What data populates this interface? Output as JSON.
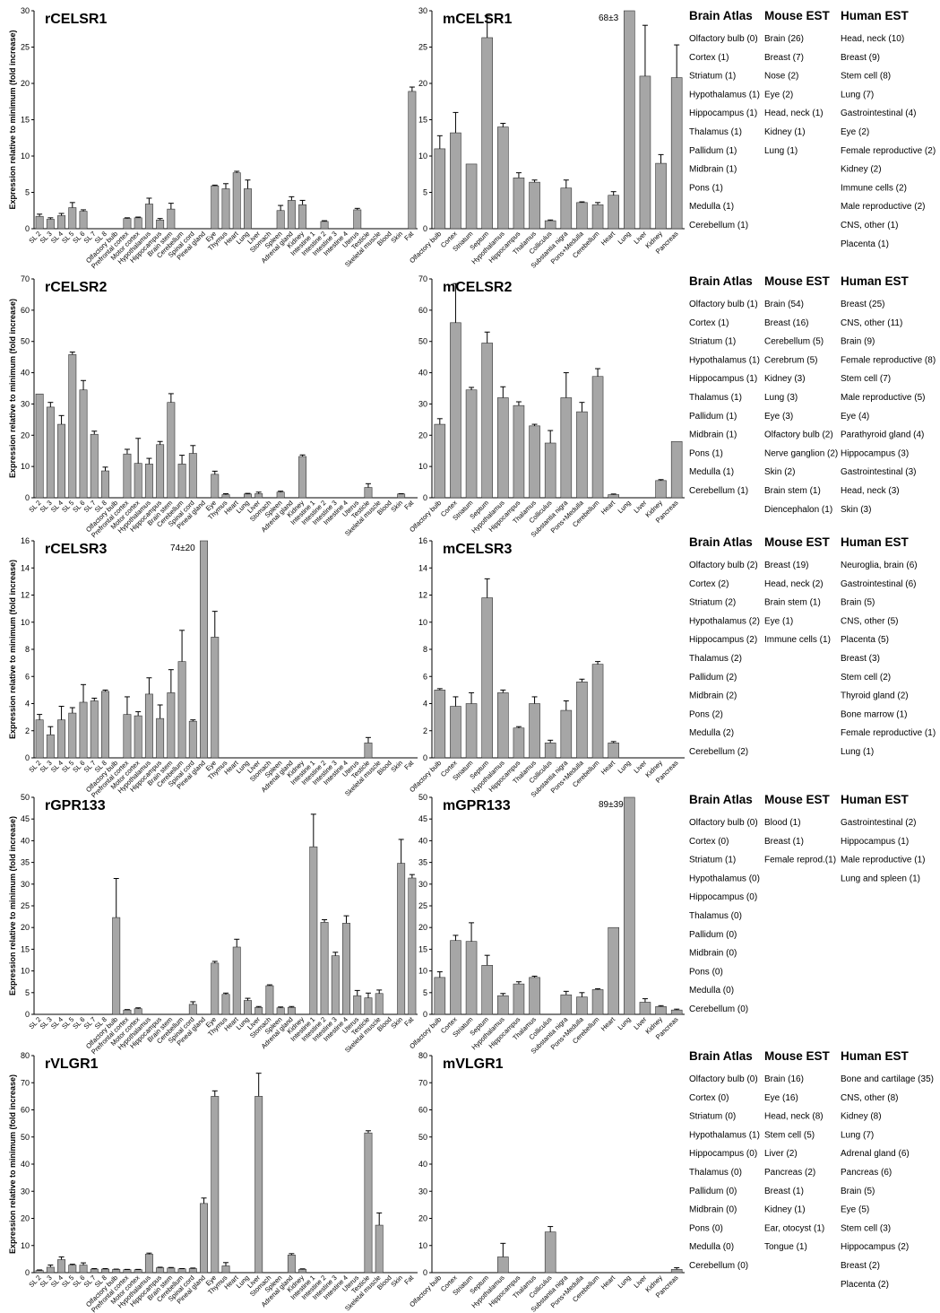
{
  "figure": {
    "ylabel": "Expression relative to minimum (fold increase)",
    "columns": {
      "brain": "Brain Atlas",
      "mouse": "Mouse EST",
      "human": "Human EST"
    },
    "colors": {
      "bar": "#a6a6a6",
      "bar_stroke": "#333333",
      "axis": "#000000"
    }
  },
  "chart_data": [
    {
      "type": "bar",
      "title": "rCELSR1",
      "annotation": "",
      "ylim": [
        0,
        30
      ],
      "ytick_step": 5,
      "categories": [
        "SL 2",
        "SL 3",
        "SL 4",
        "SL 5",
        "SL 6",
        "SL 7",
        "SL 8",
        "Olfactory bulb",
        "Prefrontal cortex",
        "Motor cortex",
        "Hypothalamus",
        "Hippocampus",
        "Brain stem",
        "Cerebellum",
        "Spinal cord",
        "Pineal gland",
        "Eye",
        "Thymus",
        "Heart",
        "Lung",
        "Liver",
        "Stomach",
        "Spleen",
        "Adrenal gland",
        "Kidney",
        "Intestine 1",
        "Intestine 2",
        "Intestine 3",
        "Intestine 4",
        "Uterus",
        "Testicle",
        "Skeletal muscle",
        "Blood",
        "Skin",
        "Fat"
      ],
      "values": [
        1.7,
        1.3,
        1.8,
        2.9,
        2.4,
        0,
        0,
        0,
        1.4,
        1.5,
        3.4,
        1.2,
        2.7,
        0,
        0,
        0,
        5.9,
        5.5,
        7.7,
        5.5,
        0,
        0,
        2.5,
        3.9,
        3.3,
        0,
        1.0,
        0,
        0,
        2.6,
        0,
        0,
        0,
        0,
        18.9
      ],
      "errors": [
        0.3,
        0.2,
        0.3,
        0.7,
        0.2,
        0,
        0,
        0,
        0.1,
        0.1,
        0.8,
        0.2,
        0.8,
        0,
        0,
        0,
        0.1,
        0.7,
        0.2,
        1.2,
        0,
        0,
        0.7,
        0.5,
        0.6,
        0,
        0.1,
        0,
        0,
        0.2,
        0,
        0,
        0,
        0,
        0.6
      ]
    },
    {
      "type": "bar",
      "title": "mCELSR1",
      "annotation": "68±3",
      "ylim": [
        0,
        30
      ],
      "ytick_step": 5,
      "categories": [
        "Olfactory bulb",
        "Cortex",
        "Striatum",
        "Septum",
        "Hypothalamus",
        "Hippocampus",
        "Thalamus",
        "Colliculus",
        "Substantia nigra",
        "Pons+Medulla",
        "Cerebellum",
        "Heart",
        "Lung",
        "Liver",
        "Kidney",
        "Pancreas"
      ],
      "values": [
        11.0,
        13.2,
        8.9,
        26.3,
        14.0,
        7.0,
        6.4,
        1.1,
        5.6,
        3.6,
        3.3,
        4.6,
        30,
        21.0,
        9.0,
        20.8
      ],
      "errors": [
        1.8,
        2.8,
        0,
        3.0,
        0.5,
        0.7,
        0.3,
        0.1,
        1.1,
        0.1,
        0.3,
        0.5,
        0,
        7.0,
        1.2,
        4.5
      ]
    },
    {
      "type": "bar",
      "title": "rCELSR2",
      "annotation": "",
      "ylim": [
        0,
        70
      ],
      "ytick_step": 10,
      "categories": [
        "SL 2",
        "SL 3",
        "SL 4",
        "SL 5",
        "SL 6",
        "SL 7",
        "SL 8",
        "Olfactory bulb",
        "Prefrontal cortex",
        "Motor cortex",
        "Hypothalamus",
        "Hippocampus",
        "Brain stem",
        "Cerebellum",
        "Spinal cord",
        "Pineal gland",
        "Eye",
        "Thymus",
        "Heart",
        "Lung",
        "Liver",
        "Stomach",
        "Spleen",
        "Adrenal gland",
        "Kidney",
        "Intestine 1",
        "Intestine 2",
        "Intestine 3",
        "Intestine 4",
        "Uterus",
        "Testicle",
        "Skeletal muscle",
        "Blood",
        "Skin",
        "Fat"
      ],
      "values": [
        33.2,
        29.0,
        23.5,
        45.8,
        34.5,
        20.3,
        8.6,
        0,
        14.0,
        11.0,
        10.8,
        17.0,
        30.5,
        10.8,
        14.2,
        0,
        7.5,
        1.0,
        0,
        1.2,
        1.3,
        0,
        1.8,
        0,
        13.2,
        0,
        0,
        0,
        0,
        0,
        3.3,
        0,
        0,
        1.2,
        0
      ],
      "errors": [
        0,
        1.5,
        2.8,
        0.8,
        3.0,
        1.0,
        1.2,
        0,
        1.5,
        8.0,
        1.8,
        1.0,
        2.8,
        2.8,
        2.5,
        0,
        1.0,
        0.3,
        0,
        0.2,
        0.5,
        0,
        0.3,
        0,
        0.5,
        0,
        0,
        0,
        0,
        0,
        1.2,
        0,
        0,
        0.1,
        0
      ]
    },
    {
      "type": "bar",
      "title": "mCELSR2",
      "annotation": "",
      "ylim": [
        0,
        70
      ],
      "ytick_step": 10,
      "categories": [
        "Olfactory bulb",
        "Cortex",
        "Striatum",
        "Septum",
        "Hypothalamus",
        "Hippocampus",
        "Thalamus",
        "Colliculus",
        "Substantia nigra",
        "Pons+Medulla",
        "Cerebellum",
        "Heart",
        "Lung",
        "Liver",
        "Kidney",
        "Pancreas"
      ],
      "values": [
        23.5,
        56.0,
        34.5,
        49.5,
        32.0,
        29.5,
        23.0,
        17.5,
        32.0,
        27.5,
        38.8,
        1.0,
        0,
        0,
        5.5,
        18.0
      ],
      "errors": [
        1.8,
        12.5,
        0.8,
        3.5,
        3.5,
        1.2,
        0.5,
        4.0,
        8.0,
        3.0,
        2.5,
        0.2,
        0,
        0,
        0.3,
        0
      ]
    },
    {
      "type": "bar",
      "title": "rCELSR3",
      "annotation": "74±20",
      "ylim": [
        0,
        16
      ],
      "ytick_step": 2,
      "categories": [
        "SL 2",
        "SL 3",
        "SL 4",
        "SL 5",
        "SL 6",
        "SL 7",
        "SL 8",
        "Olfactory bulb",
        "Prefrontal cortex",
        "Motor cortex",
        "Hypothalamus",
        "Hippocampus",
        "Brain stem",
        "Cerebellum",
        "Spinal cord",
        "Pineal gland",
        "Eye",
        "Thymus",
        "Heart",
        "Lung",
        "Liver",
        "Stomach",
        "Spleen",
        "Adrenal gland",
        "Kidney",
        "Intestine 1",
        "Intestine 2",
        "Intestine 3",
        "Intestine 4",
        "Uterus",
        "Testicle",
        "Skeletal muscle",
        "Blood",
        "Skin",
        "Fat"
      ],
      "values": [
        2.8,
        1.7,
        2.8,
        3.3,
        4.1,
        4.2,
        4.9,
        0,
        3.2,
        3.1,
        4.7,
        2.9,
        4.8,
        7.1,
        2.7,
        16,
        8.9,
        0,
        0,
        0,
        0,
        0,
        0,
        0,
        0,
        0,
        0,
        0,
        0,
        0,
        1.1,
        0,
        0,
        0,
        0
      ],
      "errors": [
        0.4,
        0.6,
        1.0,
        0.4,
        1.3,
        0.2,
        0.1,
        0,
        1.3,
        0.3,
        1.2,
        1.0,
        1.7,
        2.3,
        0.1,
        0,
        1.9,
        0,
        0,
        0,
        0,
        0,
        0,
        0,
        0,
        0,
        0,
        0,
        0,
        0,
        0.4,
        0,
        0,
        0,
        0
      ]
    },
    {
      "type": "bar",
      "title": "mCELSR3",
      "annotation": "",
      "ylim": [
        0,
        16
      ],
      "ytick_step": 2,
      "categories": [
        "Olfactory bulb",
        "Cortex",
        "Striatum",
        "Septum",
        "Hypothalamus",
        "Hippocampus",
        "Thalamus",
        "Colliculus",
        "Substantia nigra",
        "Pons+Medulla",
        "Cerebellum",
        "Heart",
        "Lung",
        "Liver",
        "Kidney",
        "Pancreas"
      ],
      "values": [
        5.0,
        3.8,
        4.0,
        11.8,
        4.8,
        2.2,
        4.0,
        1.1,
        3.5,
        5.6,
        6.9,
        1.1,
        0,
        0,
        0,
        0
      ],
      "errors": [
        0.1,
        0.7,
        0.8,
        1.4,
        0.2,
        0.1,
        0.5,
        0.2,
        0.7,
        0.2,
        0.2,
        0.1,
        0,
        0,
        0,
        0
      ]
    },
    {
      "type": "bar",
      "title": "rGPR133",
      "annotation": "",
      "ylim": [
        0,
        50
      ],
      "ytick_step": 5,
      "categories": [
        "SL 2",
        "SL 3",
        "SL 4",
        "SL 5",
        "SL 6",
        "SL 7",
        "SL 8",
        "Olfactory bulb",
        "Prefrontal cortex",
        "Motor cortex",
        "Hypothalamus",
        "Hippocampus",
        "Brain stem",
        "Cerebellum",
        "Spinal cord",
        "Pineal gland",
        "Eye",
        "Thymus",
        "Heart",
        "Lung",
        "Liver",
        "Stomach",
        "Spleen",
        "Adrenal gland",
        "Kidney",
        "Intestine 1",
        "Intestine 2",
        "Intestine 3",
        "Intestine 4",
        "Uterus",
        "Testicle",
        "Skeletal muscle",
        "Blood",
        "Skin",
        "Fat"
      ],
      "values": [
        0,
        0,
        0,
        0,
        0,
        0,
        0,
        22.3,
        1.0,
        1.3,
        0,
        0,
        0,
        0,
        2.3,
        0,
        11.8,
        4.6,
        15.5,
        3.2,
        1.6,
        6.6,
        1.5,
        1.6,
        0,
        38.6,
        21.2,
        13.5,
        21.0,
        4.3,
        3.8,
        4.8,
        0,
        34.8,
        31.4
      ],
      "errors": [
        0,
        0,
        0,
        0,
        0,
        0,
        0,
        9.0,
        0.1,
        0.2,
        0,
        0,
        0,
        0,
        0.6,
        0,
        0.4,
        0.3,
        1.8,
        0.5,
        0.2,
        0.2,
        0.2,
        0.2,
        0,
        7.5,
        0.6,
        0.8,
        1.7,
        1.2,
        1.1,
        0.8,
        0,
        5.5,
        0.8
      ]
    },
    {
      "type": "bar",
      "title": "mGPR133",
      "annotation": "89±39",
      "ylim": [
        0,
        50
      ],
      "ytick_step": 5,
      "categories": [
        "Olfactory bulb",
        "Cortex",
        "Striatum",
        "Septum",
        "Hypothalamus",
        "Hippocampus",
        "Thalamus",
        "Colliculus",
        "Substantia nigra",
        "Pons+Medulla",
        "Cerebellum",
        "Heart",
        "Lung",
        "Liver",
        "Kidney",
        "Pancreas"
      ],
      "values": [
        8.5,
        17.0,
        16.8,
        11.3,
        4.3,
        7.0,
        8.5,
        0,
        4.5,
        4.0,
        5.7,
        20.0,
        50,
        2.8,
        1.8,
        1.0
      ],
      "errors": [
        1.3,
        1.2,
        4.3,
        2.3,
        0.5,
        0.5,
        0.3,
        0,
        0.8,
        1.0,
        0.2,
        0,
        0,
        0.8,
        0.2,
        0.2
      ]
    },
    {
      "type": "bar",
      "title": "rVLGR1",
      "annotation": "",
      "ylim": [
        0,
        80
      ],
      "ytick_step": 10,
      "categories": [
        "SL 2",
        "SL 3",
        "SL 4",
        "SL 5",
        "SL 6",
        "SL 7",
        "SL 8",
        "Olfactory bulb",
        "Prefrontal cortex",
        "Motor cortex",
        "Hypothalamus",
        "Hippocampus",
        "Brain stem",
        "Cerebellum",
        "Spinal cord",
        "Pineal gland",
        "Eye",
        "Thymus",
        "Heart",
        "Lung",
        "Liver",
        "Stomach",
        "Spleen",
        "Adrenal gland",
        "Kidney",
        "Intestine 1",
        "Intestine 2",
        "Intestine 3",
        "Intestine 4",
        "Uterus",
        "Testicle",
        "Skeletal muscle",
        "Blood",
        "Skin",
        "Fat"
      ],
      "values": [
        0.8,
        2.0,
        4.8,
        2.8,
        2.8,
        1.3,
        1.3,
        1.2,
        1.1,
        1.1,
        6.8,
        1.8,
        1.7,
        1.4,
        1.5,
        25.5,
        65.0,
        2.5,
        0,
        0,
        65.0,
        0,
        0,
        6.5,
        1.2,
        0,
        0,
        0,
        0,
        0,
        51.5,
        17.5,
        0,
        0,
        0
      ],
      "errors": [
        0.2,
        0.8,
        1.0,
        0.3,
        0.8,
        0.2,
        0.2,
        0.1,
        0.1,
        0.1,
        0.4,
        0.2,
        0.2,
        0.1,
        0.2,
        2.0,
        2.0,
        1.2,
        0,
        0,
        8.5,
        0,
        0,
        0.5,
        0.2,
        0,
        0,
        0,
        0,
        0,
        0.8,
        4.5,
        0,
        0,
        0
      ]
    },
    {
      "type": "bar",
      "title": "mVLGR1",
      "annotation": "",
      "ylim": [
        0,
        80
      ],
      "ytick_step": 10,
      "categories": [
        "Olfactory bulb",
        "Cortex",
        "Striatum",
        "Septum",
        "Hypothalamus",
        "Hippocampus",
        "Thalamus",
        "Colliculus",
        "Substantia nigra",
        "Pons+Medulla",
        "Cerebellum",
        "Heart",
        "Lung",
        "Liver",
        "Kidney",
        "Pancreas"
      ],
      "values": [
        0,
        0,
        0,
        0,
        5.8,
        0,
        0,
        15.0,
        0,
        0,
        0,
        0,
        0,
        0,
        0,
        1.2
      ],
      "errors": [
        0,
        0,
        0,
        0,
        5.0,
        0,
        0,
        2.0,
        0,
        0,
        0,
        0,
        0,
        0,
        0,
        0.6
      ]
    }
  ],
  "tables": [
    {
      "brain": [
        "Olfactory bulb (0)",
        "Cortex (1)",
        "Striatum (1)",
        "Hypothalamus (1)",
        "Hippocampus (1)",
        "Thalamus (1)",
        "Pallidum (1)",
        "Midbrain (1)",
        "Pons (1)",
        "Medulla (1)",
        "Cerebellum (1)"
      ],
      "mouse": [
        "Brain (26)",
        "Breast (7)",
        "Nose (2)",
        "Eye (2)",
        "Head, neck (1)",
        "Kidney (1)",
        "Lung (1)"
      ],
      "human": [
        "Head, neck (10)",
        "Breast (9)",
        "Stem cell (8)",
        "Lung (7)",
        "Gastrointestinal (4)",
        "Eye (2)",
        "Female reproductive (2)",
        "Kidney (2)",
        "Immune cells (2)",
        "Male reproductive (2)",
        "CNS, other (1)",
        "Placenta (1)"
      ]
    },
    {
      "brain": [
        "Olfactory bulb (1)",
        "Cortex (1)",
        "Striatum (1)",
        "Hypothalamus (1)",
        "Hippocampus (1)",
        "Thalamus (1)",
        "Pallidum (1)",
        "Midbrain (1)",
        "Pons (1)",
        "Medulla (1)",
        "Cerebellum (1)"
      ],
      "mouse": [
        "Brain (54)",
        "Breast (16)",
        "Cerebellum (5)",
        "Cerebrum (5)",
        "Kidney (3)",
        "Lung (3)",
        "Eye (3)",
        "Olfactory bulb (2)",
        "Nerve ganglion (2)",
        "Skin (2)",
        "Brain stem (1)",
        "Diencephalon (1)"
      ],
      "human": [
        "Breast (25)",
        "CNS, other (11)",
        "Brain (9)",
        "Female reproductive (8)",
        "Stem cell (7)",
        "Male reproductive (5)",
        "Eye (4)",
        "Parathyroid gland (4)",
        "Hippocampus (3)",
        "Gastrointestinal (3)",
        "Head, neck (3)",
        "Skin (3)"
      ]
    },
    {
      "brain": [
        "Olfactory bulb (2)",
        "Cortex (2)",
        "Striatum (2)",
        "Hypothalamus (2)",
        "Hippocampus (2)",
        "Thalamus (2)",
        "Pallidum (2)",
        "Midbrain (2)",
        "Pons (2)",
        "Medulla (2)",
        "Cerebellum (2)"
      ],
      "mouse": [
        "Breast (19)",
        "Head, neck (2)",
        "Brain stem (1)",
        "Eye (1)",
        "Immune cells (1)"
      ],
      "human": [
        "Neuroglia, brain (6)",
        "Gastrointestinal (6)",
        "Brain (5)",
        "CNS, other (5)",
        "Placenta (5)",
        "Breast (3)",
        "Stem cell (2)",
        "Thyroid gland (2)",
        "Bone marrow (1)",
        "Female reproductive (1)",
        "Lung (1)"
      ]
    },
    {
      "brain": [
        "Olfactory bulb (0)",
        "Cortex (0)",
        "Striatum (1)",
        "Hypothalamus (0)",
        "Hippocampus (0)",
        "Thalamus (0)",
        "Pallidum (0)",
        "Midbrain (0)",
        "Pons (0)",
        "Medulla (0)",
        "Cerebellum (0)"
      ],
      "mouse": [
        "Blood (1)",
        "Breast (1)",
        "Female reprod.(1)"
      ],
      "human": [
        "Gastrointestinal (2)",
        "Hippocampus (1)",
        "Male reproductive (1)",
        "Lung and spleen (1)"
      ]
    },
    {
      "brain": [
        "Olfactory bulb (0)",
        "Cortex (0)",
        "Striatum (0)",
        "Hypothalamus (1)",
        "Hippocampus (0)",
        "Thalamus (0)",
        "Pallidum (0)",
        "Midbrain (0)",
        "Pons (0)",
        "Medulla (0)",
        "Cerebellum (0)"
      ],
      "mouse": [
        "Brain (16)",
        "Eye (16)",
        "Head, neck (8)",
        "Stem cell (5)",
        "Liver (2)",
        "Pancreas (2)",
        "Breast (1)",
        "Kidney (1)",
        "Ear, otocyst (1)",
        "Tongue (1)"
      ],
      "human": [
        "Bone and cartilage (35)",
        "CNS, other (8)",
        "Kidney (8)",
        "Lung (7)",
        "Adrenal gland (6)",
        "Pancreas (6)",
        "Brain (5)",
        "Eye (5)",
        "Stem cell (3)",
        "Hippocampus (2)",
        "Breast (2)",
        "Placenta (2)"
      ]
    }
  ]
}
